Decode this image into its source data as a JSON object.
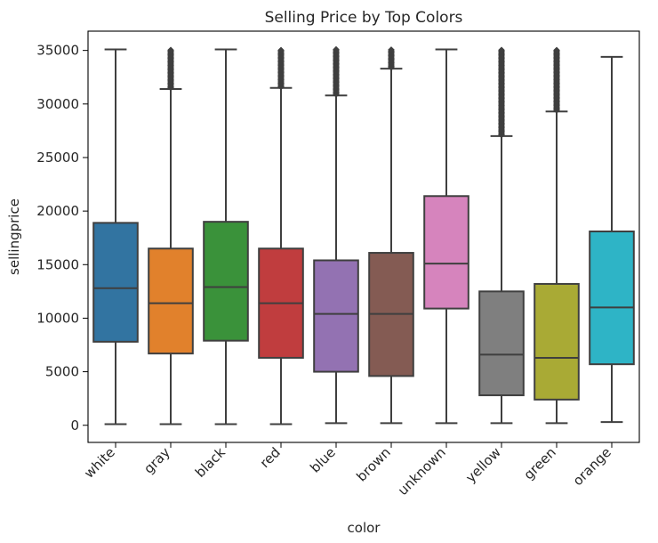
{
  "chart_data": {
    "type": "box",
    "title": "Selling Price by Top Colors",
    "xlabel": "color",
    "ylabel": "sellingprice",
    "ylim": [
      -1600,
      36800
    ],
    "yticks": [
      0,
      5000,
      10000,
      15000,
      20000,
      25000,
      30000,
      35000
    ],
    "grid": false,
    "categories": [
      "white",
      "gray",
      "black",
      "red",
      "blue",
      "brown",
      "unknown",
      "yellow",
      "green",
      "orange"
    ],
    "colors": [
      "#3274a1",
      "#e1812c",
      "#3a923a",
      "#c03d3e",
      "#9372b2",
      "#845b53",
      "#d684bd",
      "#7f7f7f",
      "#a9aa35",
      "#2eb4c6"
    ],
    "boxes": [
      {
        "category": "white",
        "whisker_low": 100,
        "q1": 7800,
        "median": 12800,
        "q3": 18900,
        "whisker_high": 35100,
        "outliers_from": null
      },
      {
        "category": "gray",
        "whisker_low": 100,
        "q1": 6700,
        "median": 11400,
        "q3": 16500,
        "whisker_high": 31400,
        "outliers_from": 31400,
        "outliers_to": 35100
      },
      {
        "category": "black",
        "whisker_low": 100,
        "q1": 7900,
        "median": 12900,
        "q3": 19000,
        "whisker_high": 35100,
        "outliers_from": null
      },
      {
        "category": "red",
        "whisker_low": 100,
        "q1": 6300,
        "median": 11400,
        "q3": 16500,
        "whisker_high": 31500,
        "outliers_from": 31500,
        "outliers_to": 35100
      },
      {
        "category": "blue",
        "whisker_low": 200,
        "q1": 5000,
        "median": 10400,
        "q3": 15400,
        "whisker_high": 30800,
        "outliers_from": 30800,
        "outliers_to": 35100
      },
      {
        "category": "brown",
        "whisker_low": 200,
        "q1": 4600,
        "median": 10400,
        "q3": 16100,
        "whisker_high": 33300,
        "outliers_from": 33300,
        "outliers_to": 35100
      },
      {
        "category": "unknown",
        "whisker_low": 200,
        "q1": 10900,
        "median": 15100,
        "q3": 21400,
        "whisker_high": 35100,
        "outliers_from": null
      },
      {
        "category": "yellow",
        "whisker_low": 200,
        "q1": 2800,
        "median": 6600,
        "q3": 12500,
        "whisker_high": 27000,
        "outliers_from": 27000,
        "outliers_to": 35100
      },
      {
        "category": "green",
        "whisker_low": 200,
        "q1": 2400,
        "median": 6300,
        "q3": 13200,
        "whisker_high": 29300,
        "outliers_from": 29300,
        "outliers_to": 35100
      },
      {
        "category": "orange",
        "whisker_low": 300,
        "q1": 5700,
        "median": 11000,
        "q3": 18100,
        "whisker_high": 34400,
        "outliers_from": null
      }
    ]
  }
}
